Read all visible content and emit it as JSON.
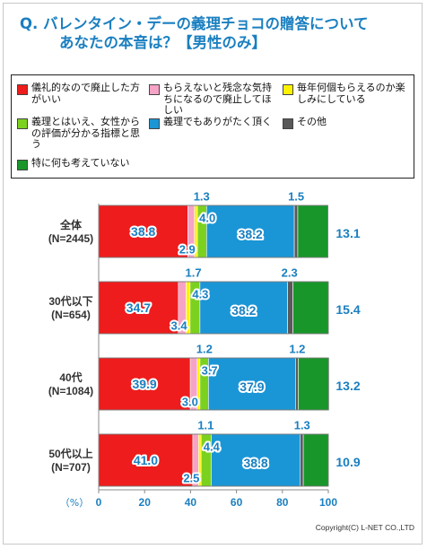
{
  "title_line1": "Q. バレンタイン・デーの義理チョコの贈答について",
  "title_line2": "あなたの本音は？【男性のみ】",
  "copyright": "Copyright(C) L-NET CO.,LTD",
  "chart_data": {
    "type": "bar",
    "stacked": true,
    "orientation": "horizontal",
    "categories": [
      {
        "name": "全体",
        "n": "(N=2445)"
      },
      {
        "name": "30代以下",
        "n": "(N=654)"
      },
      {
        "name": "40代",
        "n": "(N=1084)"
      },
      {
        "name": "50代以上",
        "n": "(N=707)"
      }
    ],
    "series": [
      {
        "name": "儀礼的なので廃止した方がいい",
        "color": "#ee1c1c",
        "values": [
          38.8,
          34.7,
          39.9,
          41.0
        ]
      },
      {
        "name": "もらえないと残念な気持ちになるので廃止してほしい",
        "color": "#f5a3c7",
        "values": [
          2.9,
          3.4,
          3.0,
          2.5
        ]
      },
      {
        "name": "毎年何個もらえるのか楽しみにしている",
        "color": "#fff200",
        "values": [
          1.3,
          1.7,
          1.2,
          1.1
        ]
      },
      {
        "name": "義理とはいえ、女性からの評価が分かる指標と思う",
        "color": "#7cd11e",
        "values": [
          4.0,
          4.3,
          3.7,
          4.4
        ]
      },
      {
        "name": "義理でもありがたく頂く",
        "color": "#1a96d6",
        "values": [
          38.2,
          38.2,
          37.9,
          38.8
        ]
      },
      {
        "name": "その他",
        "color": "#595959",
        "values": [
          1.5,
          2.3,
          1.2,
          1.3
        ]
      },
      {
        "name": "特に何も考えていない",
        "color": "#18962a",
        "values": [
          13.1,
          15.4,
          13.2,
          10.9
        ]
      }
    ],
    "value_labels": [
      [
        "38.8",
        "2.9",
        "1.3",
        "4.0",
        "38.2",
        "1.5",
        "13.1"
      ],
      [
        "34.7",
        "3.4",
        "1.7",
        "4.3",
        "38.2",
        "2.3",
        "15.4"
      ],
      [
        "39.9",
        "3.0",
        "1.2",
        "3.7",
        "37.9",
        "1.2",
        "13.2"
      ],
      [
        "41.0",
        "2.5",
        "1.1",
        "4.4",
        "38.8",
        "1.3",
        "10.9"
      ]
    ],
    "xlim": [
      0,
      100
    ],
    "xticks": [
      "0",
      "20",
      "40",
      "60",
      "80",
      "100"
    ],
    "xlabel": "（%）",
    "grid": false
  }
}
